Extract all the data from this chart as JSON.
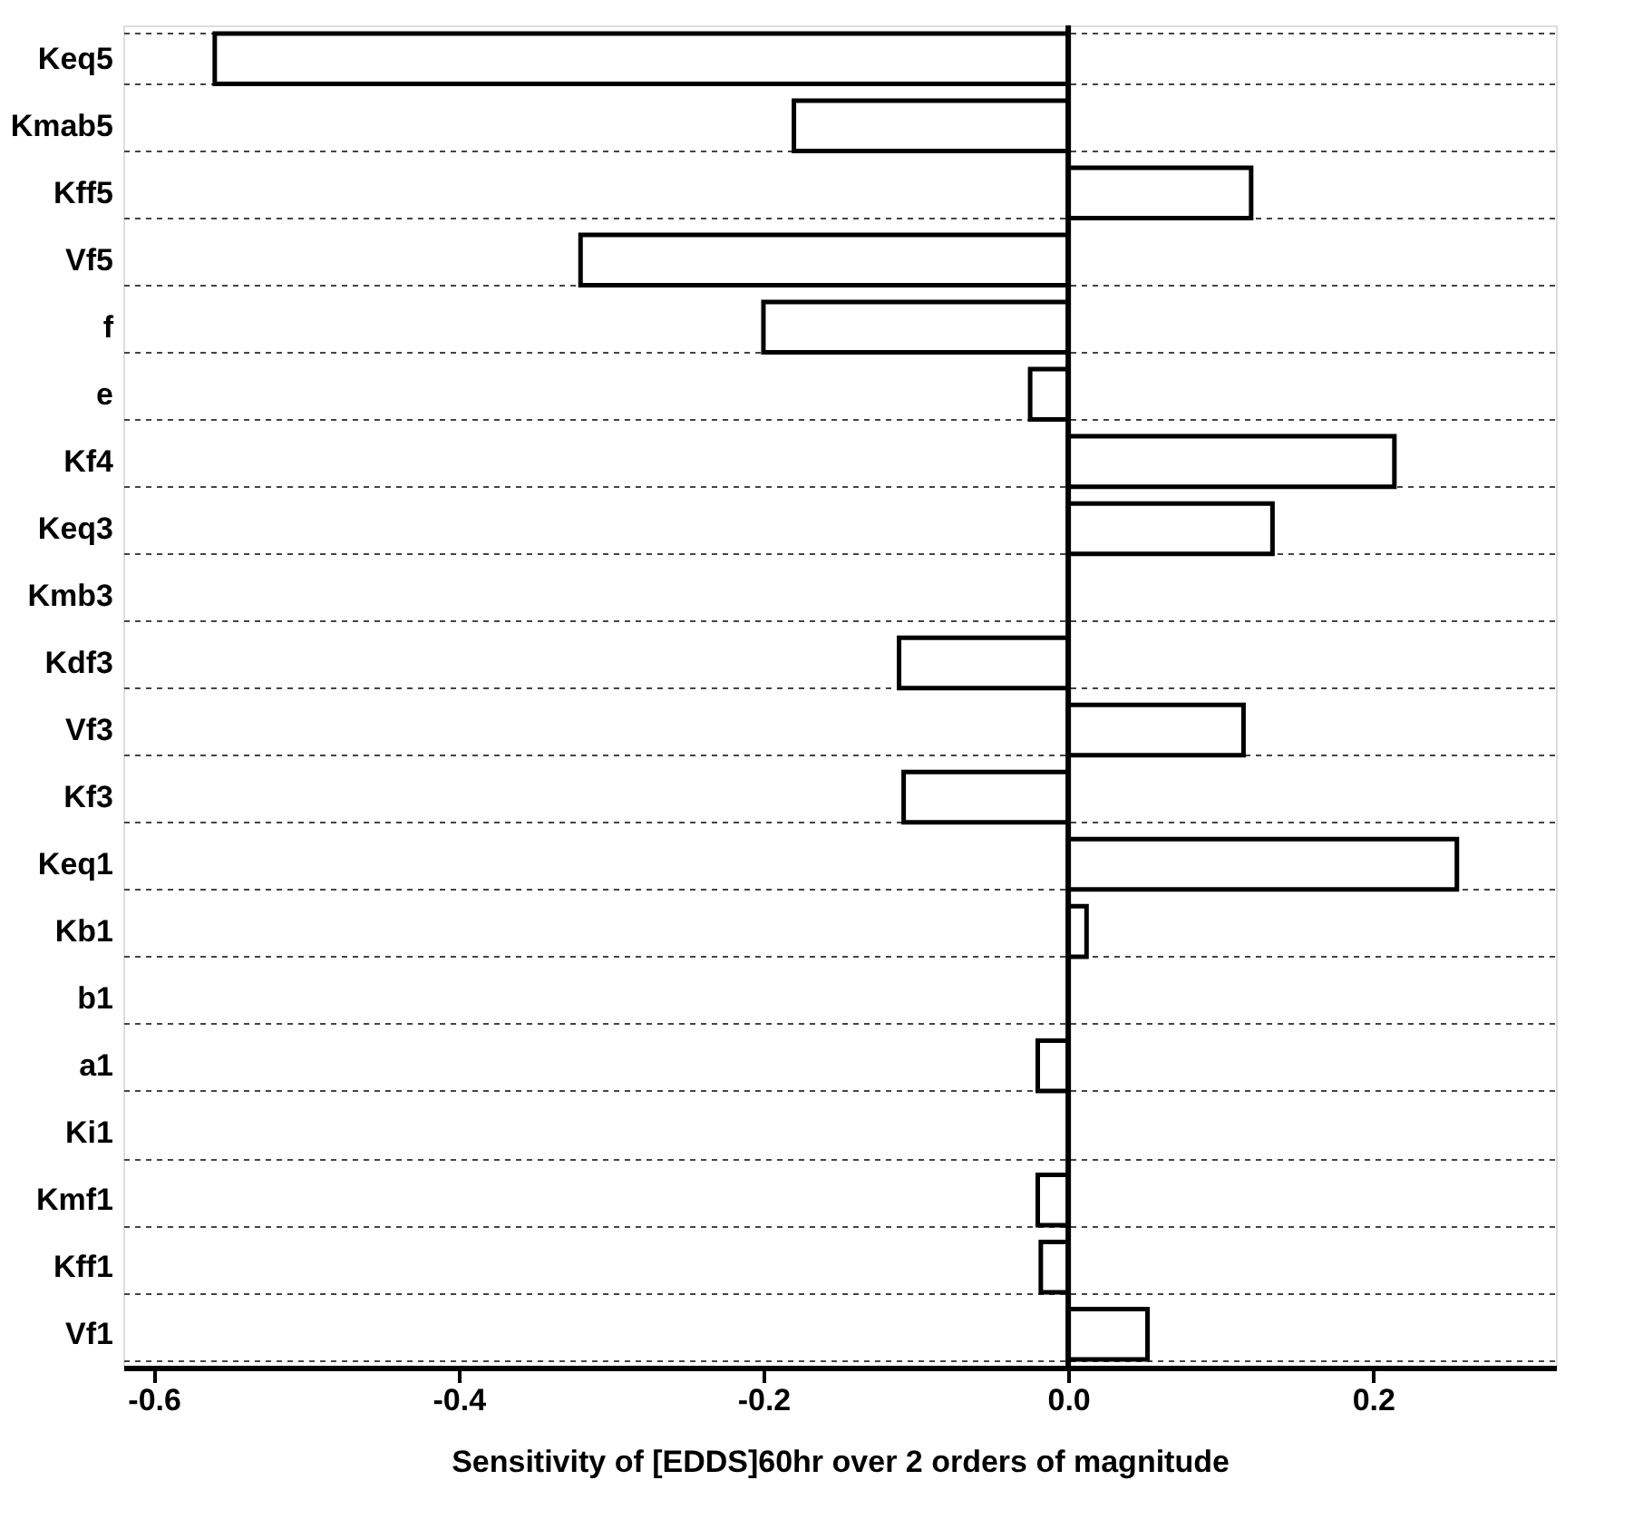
{
  "chart_data": {
    "type": "bar",
    "orientation": "horizontal",
    "categories": [
      "Keq5",
      "Kmab5",
      "Kff5",
      "Vf5",
      "f",
      "e",
      "Kf4",
      "Keq3",
      "Kmb3",
      "Kdf3",
      "Vf3",
      "Kf3",
      "Keq1",
      "Kb1",
      "b1",
      "a1",
      "Ki1",
      "Kmf1",
      "Kff1",
      "Vf1"
    ],
    "values": [
      -0.56,
      -0.18,
      0.12,
      -0.32,
      -0.2,
      -0.025,
      0.214,
      0.134,
      0,
      -0.111,
      0.115,
      -0.108,
      0.255,
      0.012,
      0,
      -0.02,
      0,
      -0.02,
      -0.018,
      0.052
    ],
    "color": "#ffffff",
    "xlabel": "Sensitivity of [EDDS]60hr over 2 orders of magnitude",
    "xlim": [
      -0.62,
      0.32
    ],
    "xticks": [
      -0.6,
      -0.4,
      -0.2,
      {
        "value": 0,
        "label": "0.0"
      },
      0.2
    ],
    "grid": "y"
  }
}
